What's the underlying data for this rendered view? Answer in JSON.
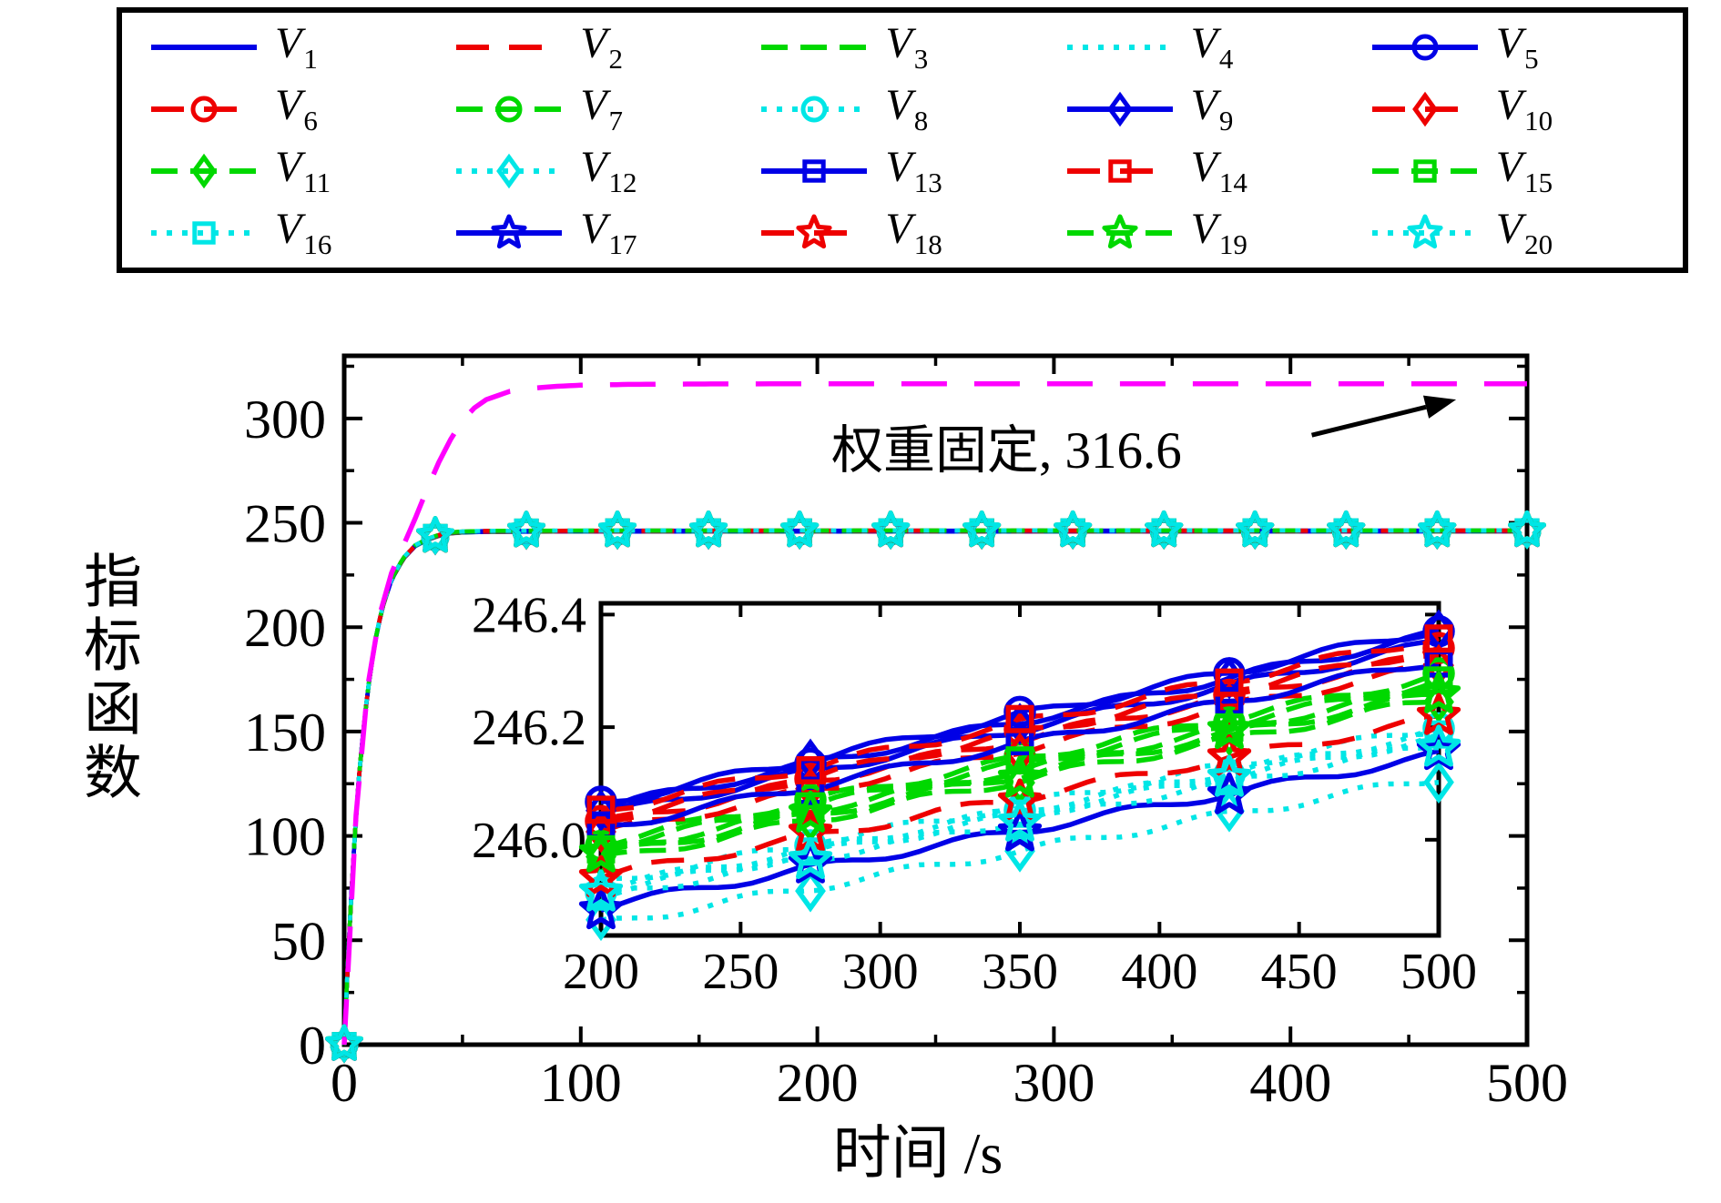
{
  "figure": {
    "background": "#ffffff",
    "annotation": {
      "text": "权重固定, 316.6",
      "value": "316.6",
      "text_pos_data": [
        280,
        287
      ],
      "arrow_tail_data": [
        409,
        292
      ],
      "arrow_tip_data": [
        470,
        309
      ]
    }
  },
  "chart_data": {
    "type": "line",
    "title": "",
    "xlabel": "时间 /s",
    "ylabel": "指标函数",
    "legend_position": "top",
    "grid": false,
    "main": {
      "xlim": [
        0,
        500
      ],
      "ylim": [
        0,
        330
      ],
      "xticks": [
        "0",
        "100",
        "200",
        "300",
        "400",
        "500"
      ],
      "xtick_values": [
        0,
        100,
        200,
        300,
        400,
        500
      ],
      "xminor_step": 50,
      "yticks": [
        "0",
        "50",
        "100",
        "150",
        "200",
        "250",
        "300"
      ],
      "ytick_values": [
        0,
        50,
        100,
        150,
        200,
        250,
        300
      ],
      "yminor_step": 25,
      "marker_xs": [
        0,
        38.5,
        77,
        115.5,
        154,
        192.5,
        231,
        269.5,
        308,
        346.5,
        385,
        423.5,
        462,
        500
      ],
      "bundle_plateau": 246.1,
      "bundle_tau": 8.5,
      "bundle_points": [
        [
          0,
          0
        ],
        [
          2,
          51
        ],
        [
          4,
          92
        ],
        [
          6,
          125
        ],
        [
          8,
          150
        ],
        [
          10,
          170
        ],
        [
          13,
          193
        ],
        [
          16,
          209
        ],
        [
          20,
          223
        ],
        [
          25,
          233
        ],
        [
          30,
          239
        ],
        [
          35,
          242
        ],
        [
          40,
          244
        ],
        [
          45,
          245.2
        ],
        [
          50,
          245.6
        ],
        [
          60,
          245.9
        ],
        [
          80,
          246.0
        ],
        [
          100,
          246.05
        ],
        [
          150,
          246.07
        ],
        [
          200,
          246.08
        ],
        [
          250,
          246.09
        ],
        [
          300,
          246.1
        ],
        [
          350,
          246.1
        ],
        [
          400,
          246.11
        ],
        [
          450,
          246.11
        ],
        [
          500,
          246.12
        ]
      ],
      "weight_fixed": {
        "label": "权重固定, 316.6",
        "final_value": 316.6,
        "color": "#FF00FF",
        "points": [
          [
            0,
            0
          ],
          [
            5,
            110
          ],
          [
            10,
            172
          ],
          [
            15,
            206
          ],
          [
            20,
            226
          ],
          [
            25,
            239
          ],
          [
            30,
            252
          ],
          [
            35,
            266
          ],
          [
            40,
            279
          ],
          [
            45,
            290
          ],
          [
            50,
            299
          ],
          [
            55,
            305
          ],
          [
            60,
            309
          ],
          [
            70,
            313
          ],
          [
            80,
            314.5
          ],
          [
            90,
            315.4
          ],
          [
            100,
            315.9
          ],
          [
            120,
            316.3
          ],
          [
            150,
            316.5
          ],
          [
            200,
            316.6
          ],
          [
            300,
            316.6
          ],
          [
            400,
            316.6
          ],
          [
            500,
            316.6
          ]
        ]
      }
    },
    "inset": {
      "xlim": [
        200,
        500
      ],
      "ylim": [
        245.83,
        246.42
      ],
      "xticks": [
        "200",
        "250",
        "300",
        "350",
        "400",
        "450",
        "500"
      ],
      "xtick_values": [
        200,
        250,
        300,
        350,
        400,
        450,
        500
      ],
      "yticks": [
        "246.0",
        "246.2",
        "246.4"
      ],
      "ytick_values": [
        246.0,
        246.2,
        246.4
      ],
      "marker_xs": [
        200,
        275,
        350,
        425,
        500
      ],
      "wiggle_amp": 0.008,
      "wiggle_period": 55
    },
    "series": [
      {
        "name": "V",
        "sub": "1",
        "color": "#0000E6",
        "linestyle": "solid",
        "marker": "none",
        "inset_start": 246.044,
        "inset_end": 246.35,
        "phase": 0.0
      },
      {
        "name": "V",
        "sub": "2",
        "color": "#EE0000",
        "linestyle": "dashed",
        "marker": "none",
        "inset_start": 246.028,
        "inset_end": 246.33,
        "phase": 0.7
      },
      {
        "name": "V",
        "sub": "3",
        "color": "#00D800",
        "linestyle": "longdash",
        "marker": "none",
        "inset_start": 245.98,
        "inset_end": 246.27,
        "phase": 1.4
      },
      {
        "name": "V",
        "sub": "4",
        "color": "#00E6E6",
        "linestyle": "dotted",
        "marker": "none",
        "inset_start": 245.923,
        "inset_end": 246.2,
        "phase": 2.1
      },
      {
        "name": "V",
        "sub": "5",
        "color": "#0000E6",
        "linestyle": "solid",
        "marker": "circle",
        "inset_start": 246.065,
        "inset_end": 246.375,
        "phase": 2.8
      },
      {
        "name": "V",
        "sub": "6",
        "color": "#EE0000",
        "linestyle": "dashed",
        "marker": "circle",
        "inset_start": 246.036,
        "inset_end": 246.34,
        "phase": 3.5
      },
      {
        "name": "V",
        "sub": "7",
        "color": "#00D800",
        "linestyle": "longdash",
        "marker": "circle",
        "inset_start": 245.996,
        "inset_end": 246.29,
        "phase": 4.2
      },
      {
        "name": "V",
        "sub": "8",
        "color": "#00E6E6",
        "linestyle": "dotted",
        "marker": "circle",
        "inset_start": 245.915,
        "inset_end": 246.19,
        "phase": 4.9
      },
      {
        "name": "V",
        "sub": "9",
        "color": "#0000E6",
        "linestyle": "solid",
        "marker": "diamond",
        "inset_start": 246.057,
        "inset_end": 246.365,
        "phase": 5.6
      },
      {
        "name": "V",
        "sub": "10",
        "color": "#EE0000",
        "linestyle": "dashed",
        "marker": "diamond",
        "inset_start": 246.012,
        "inset_end": 246.31,
        "phase": 0.3
      },
      {
        "name": "V",
        "sub": "11",
        "color": "#00D800",
        "linestyle": "longdash",
        "marker": "diamond",
        "inset_start": 245.963,
        "inset_end": 246.25,
        "phase": 1.0
      },
      {
        "name": "V",
        "sub": "12",
        "color": "#00E6E6",
        "linestyle": "dotted",
        "marker": "diamond",
        "inset_start": 245.85,
        "inset_end": 246.11,
        "phase": 1.7
      },
      {
        "name": "V",
        "sub": "13",
        "color": "#0000E6",
        "linestyle": "solid",
        "marker": "square",
        "inset_start": 246.02,
        "inset_end": 246.32,
        "phase": 2.4
      },
      {
        "name": "V",
        "sub": "14",
        "color": "#EE0000",
        "linestyle": "dashed",
        "marker": "square",
        "inset_start": 246.053,
        "inset_end": 246.36,
        "phase": 3.1
      },
      {
        "name": "V",
        "sub": "15",
        "color": "#00D800",
        "linestyle": "longdash",
        "marker": "square",
        "inset_start": 245.988,
        "inset_end": 246.28,
        "phase": 3.8
      },
      {
        "name": "V",
        "sub": "16",
        "color": "#00E6E6",
        "linestyle": "dotted",
        "marker": "square",
        "inset_start": 245.907,
        "inset_end": 246.18,
        "phase": 4.5
      },
      {
        "name": "V",
        "sub": "17",
        "color": "#0000E6",
        "linestyle": "solid",
        "marker": "star",
        "inset_start": 245.882,
        "inset_end": 246.15,
        "phase": 5.2
      },
      {
        "name": "V",
        "sub": "18",
        "color": "#EE0000",
        "linestyle": "dashed",
        "marker": "star",
        "inset_start": 245.935,
        "inset_end": 246.215,
        "phase": 5.9
      },
      {
        "name": "V",
        "sub": "19",
        "color": "#00D800",
        "linestyle": "longdash",
        "marker": "star",
        "inset_start": 245.972,
        "inset_end": 246.26,
        "phase": 0.5
      },
      {
        "name": "V",
        "sub": "20",
        "color": "#00E6E6",
        "linestyle": "dotted",
        "marker": "star",
        "inset_start": 245.899,
        "inset_end": 246.17,
        "phase": 1.2
      }
    ]
  }
}
